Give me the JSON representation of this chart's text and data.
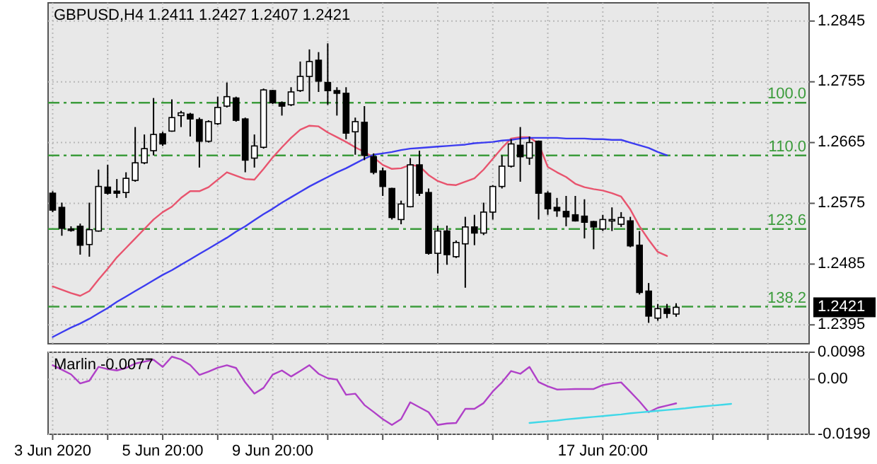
{
  "chart_data": [
    {
      "type": "candlestick",
      "title": "GBPUSD,H4 1.2411 1.2427 1.2407 1.2421",
      "categories": [
        null,
        null,
        null,
        null,
        null,
        null,
        null,
        null,
        null,
        null,
        null,
        null,
        null,
        null,
        null,
        null,
        null,
        null,
        null,
        null,
        null,
        null,
        null,
        null,
        null,
        null,
        null,
        null,
        null,
        null,
        null,
        null,
        null,
        null,
        null,
        null,
        null,
        null,
        null,
        null,
        null,
        null,
        null,
        null,
        null,
        null,
        null,
        null,
        null,
        null,
        null,
        null,
        null,
        null,
        null,
        null,
        null,
        null,
        null,
        null,
        null,
        null,
        null,
        null,
        null,
        null,
        null,
        null,
        null,
        null,
        null,
        null,
        null,
        null,
        null,
        null,
        null,
        null,
        null,
        null,
        null,
        null,
        null
      ],
      "ohlc": [
        [
          1.259,
          1.2593,
          1.2562,
          1.2565
        ],
        [
          1.2569,
          1.2576,
          1.2527,
          1.2538
        ],
        [
          1.2537,
          1.2541,
          1.2533,
          1.2535
        ],
        [
          1.2541,
          1.2545,
          1.2499,
          1.2513
        ],
        [
          1.2514,
          1.2576,
          1.2496,
          1.2536
        ],
        [
          1.2534,
          1.2625,
          1.2533,
          1.26
        ],
        [
          1.2599,
          1.2632,
          1.2588,
          1.259
        ],
        [
          1.2593,
          1.2611,
          1.2583,
          1.259
        ],
        [
          1.2591,
          1.2621,
          1.2583,
          1.2612
        ],
        [
          1.2609,
          1.2688,
          1.2607,
          1.2635
        ],
        [
          1.2635,
          1.2677,
          1.2633,
          1.2656
        ],
        [
          1.2653,
          1.2731,
          1.2646,
          1.2677
        ],
        [
          1.2678,
          1.2681,
          1.266,
          1.2663
        ],
        [
          1.2682,
          1.2729,
          1.2681,
          1.2702
        ],
        [
          1.2705,
          1.2712,
          1.2688,
          1.2709
        ],
        [
          1.2707,
          1.2709,
          1.2674,
          1.27
        ],
        [
          1.2699,
          1.2702,
          1.2628,
          1.2667
        ],
        [
          1.2667,
          1.2698,
          1.2665,
          1.2696
        ],
        [
          1.2693,
          1.2733,
          1.2691,
          1.2717
        ],
        [
          1.2719,
          1.2754,
          1.2717,
          1.2733
        ],
        [
          1.2731,
          1.2733,
          1.2696,
          1.2698
        ],
        [
          1.27,
          1.2702,
          1.2621,
          1.2639
        ],
        [
          1.2642,
          1.2677,
          1.2628,
          1.266
        ],
        [
          1.2658,
          1.2745,
          1.2656,
          1.2743
        ],
        [
          1.2742,
          1.2743,
          1.2722,
          1.2724
        ],
        [
          1.2724,
          1.2726,
          1.2705,
          1.2719
        ],
        [
          1.2721,
          1.2747,
          1.2719,
          1.274
        ],
        [
          1.2742,
          1.2785,
          1.274,
          1.2763
        ],
        [
          1.2763,
          1.2803,
          1.2726,
          1.2785
        ],
        [
          1.2787,
          1.2799,
          1.274,
          1.2756
        ],
        [
          1.2754,
          1.2812,
          1.2721,
          1.2742
        ],
        [
          1.2742,
          1.2747,
          1.2705,
          1.2738
        ],
        [
          1.2738,
          1.2747,
          1.267,
          1.2679
        ],
        [
          1.2681,
          1.2702,
          1.2647,
          1.2696
        ],
        [
          1.2695,
          1.2719,
          1.2639,
          1.2646
        ],
        [
          1.2644,
          1.2649,
          1.2618,
          1.2621
        ],
        [
          1.2623,
          1.2628,
          1.2586,
          1.26
        ],
        [
          1.2597,
          1.2598,
          1.2551,
          1.2554
        ],
        [
          1.2551,
          1.2579,
          1.2544,
          1.2574
        ],
        [
          1.257,
          1.2642,
          1.2569,
          1.2632
        ],
        [
          1.2632,
          1.2653,
          1.2586,
          1.259
        ],
        [
          1.2591,
          1.2597,
          1.2499,
          1.2501
        ],
        [
          1.2501,
          1.2542,
          1.2471,
          1.2534
        ],
        [
          1.2534,
          1.2542,
          1.2484,
          1.2499
        ],
        [
          1.2496,
          1.252,
          1.2494,
          1.2517
        ],
        [
          1.2515,
          1.2555,
          1.245,
          1.254
        ],
        [
          1.254,
          1.2558,
          1.2513,
          1.2531
        ],
        [
          1.2531,
          1.2576,
          1.2528,
          1.2562
        ],
        [
          1.2562,
          1.2602,
          1.2551,
          1.26
        ],
        [
          1.26,
          1.2646,
          1.2597,
          1.263
        ],
        [
          1.263,
          1.267,
          1.2628,
          1.2663
        ],
        [
          1.2661,
          1.2688,
          1.2607,
          1.2644
        ],
        [
          1.2642,
          1.2674,
          1.2632,
          1.2665
        ],
        [
          1.2667,
          1.2668,
          1.2551,
          1.259
        ],
        [
          1.259,
          1.2593,
          1.2558,
          1.2567
        ],
        [
          1.2569,
          1.2583,
          1.2555,
          1.2564
        ],
        [
          1.2563,
          1.2586,
          1.2541,
          1.2555
        ],
        [
          1.2558,
          1.2586,
          1.2548,
          1.2549
        ],
        [
          1.2556,
          1.2581,
          1.2523,
          1.2547
        ],
        [
          1.2548,
          1.2549,
          1.2507,
          1.254
        ],
        [
          1.2537,
          1.2558,
          1.2534,
          1.2551
        ],
        [
          1.255,
          1.2569,
          1.2534,
          1.2551
        ],
        [
          1.2544,
          1.2562,
          1.254,
          1.2554
        ],
        [
          1.2549,
          1.2555,
          1.251,
          1.2512
        ],
        [
          1.2513,
          1.2534,
          1.244,
          1.2443
        ],
        [
          1.2445,
          1.2457,
          1.2398,
          1.2408
        ],
        [
          1.2405,
          1.2426,
          1.2401,
          1.2419
        ],
        [
          1.2419,
          1.2426,
          1.2405,
          1.2412
        ],
        [
          1.2411,
          1.2427,
          1.2407,
          1.2421
        ],
        null,
        null,
        null,
        null,
        null,
        null,
        null,
        null,
        null,
        null,
        null,
        null,
        null,
        null
      ],
      "series": [
        {
          "type": "line",
          "color": "#e8546e",
          "values": [
            1.2452,
            1.2447,
            1.2442,
            1.2438,
            1.2445,
            1.2462,
            1.2478,
            1.2495,
            1.2509,
            1.2523,
            1.2537,
            1.2551,
            1.2562,
            1.257,
            1.2583,
            1.2593,
            1.2593,
            1.2599,
            1.261,
            1.2621,
            1.2616,
            1.2611,
            1.261,
            1.2626,
            1.2643,
            1.2658,
            1.2672,
            1.2684,
            1.269,
            1.2689,
            1.268,
            1.2673,
            1.2666,
            1.2658,
            1.2651,
            1.2643,
            1.2632,
            1.2626,
            1.2627,
            1.2632,
            1.263,
            1.2617,
            1.2608,
            1.2603,
            1.2602,
            1.2607,
            1.2612,
            1.2625,
            1.2641,
            1.2657,
            1.2671,
            1.2673,
            1.2673,
            1.2663,
            1.2629,
            1.2621,
            1.2614,
            1.2604,
            1.2599,
            1.2596,
            1.2594,
            1.259,
            1.2585,
            1.2566,
            1.2541,
            1.2521,
            1.2503,
            1.2497,
            null,
            null,
            null,
            null,
            null,
            null,
            null,
            null,
            null,
            null,
            null,
            null,
            null,
            null,
            null
          ]
        },
        {
          "type": "line",
          "color": "#3c3cf0",
          "values": [
            1.2377,
            1.2384,
            1.2391,
            1.2397,
            1.2404,
            1.2412,
            1.242,
            1.2429,
            1.2437,
            1.2445,
            1.2453,
            1.2461,
            1.2469,
            1.2476,
            1.2484,
            1.2492,
            1.25,
            1.2508,
            1.2516,
            1.2524,
            1.2533,
            1.2541,
            1.255,
            1.2559,
            1.2567,
            1.2576,
            1.2584,
            1.2592,
            1.26,
            1.2607,
            1.2614,
            1.2621,
            1.2627,
            1.2634,
            1.2641,
            1.2647,
            1.2649,
            1.2651,
            1.2654,
            1.2656,
            1.2657,
            1.2658,
            1.2659,
            1.266,
            1.2661,
            1.2662,
            1.2664,
            1.2665,
            1.2666,
            1.2668,
            1.2669,
            1.2671,
            1.2672,
            1.2672,
            1.2672,
            1.2672,
            1.2671,
            1.2671,
            1.2671,
            1.267,
            1.267,
            1.2669,
            1.2669,
            1.2665,
            1.2661,
            1.2657,
            1.2651,
            1.2646,
            null,
            null,
            null,
            null,
            null,
            null,
            null,
            null,
            null,
            null,
            null,
            null,
            null,
            null,
            null
          ]
        }
      ],
      "ref_lines": [
        {
          "axis": "y",
          "value": 1.2724,
          "color": "#3c9c3c",
          "line_style": "dashed"
        },
        {
          "axis": "y",
          "value": 1.2646,
          "color": "#3c9c3c",
          "line_style": "dashed"
        },
        {
          "axis": "y",
          "value": 1.2537,
          "color": "#3c9c3c",
          "line_style": "dashed"
        },
        {
          "axis": "y",
          "value": 1.2422,
          "color": "#3c9c3c",
          "line_style": "dashed"
        }
      ],
      "annotations": [
        {
          "text": "100.0",
          "y": 1.2724
        },
        {
          "text": "110.0",
          "y": 1.2646
        },
        {
          "text": "123.6",
          "y": 1.2537
        },
        {
          "text": "138.2",
          "y": 1.2422
        },
        "1.2421"
      ],
      "ylim": [
        1.2367,
        1.2872
      ],
      "yticks": [
        1.2395,
        1.2485,
        1.2575,
        1.2665,
        1.2755,
        1.2845
      ],
      "grid": true,
      "tick_labels": "y"
    },
    {
      "type": "line",
      "title": "Marlin -0.0077",
      "categories": [
        "3 Jun 2020",
        null,
        null,
        null,
        null,
        null,
        null,
        null,
        null,
        null,
        null,
        null,
        "5 Jun 20:00",
        null,
        null,
        null,
        null,
        null,
        null,
        null,
        null,
        null,
        null,
        null,
        "9 Jun 20:00",
        null,
        null,
        null,
        null,
        null,
        null,
        null,
        null,
        null,
        null,
        null,
        null,
        null,
        null,
        null,
        null,
        null,
        null,
        null,
        null,
        null,
        null,
        null,
        null,
        null,
        null,
        null,
        null,
        null,
        null,
        null,
        null,
        null,
        null,
        null,
        "17 Jun 20:00",
        null,
        null,
        null,
        null,
        null,
        null,
        null,
        null,
        null,
        null,
        null,
        null,
        null,
        null,
        null,
        null,
        null,
        null,
        null,
        null,
        null,
        null
      ],
      "series": [
        {
          "type": "line",
          "color": "#b040c8",
          "values": [
            0.0051,
            0.0035,
            0.0018,
            -0.0015,
            -0.0005,
            0.0045,
            0.0037,
            0.0032,
            0.0041,
            0.0057,
            0.0064,
            0.0071,
            0.0045,
            0.0082,
            0.0072,
            0.0052,
            0.0016,
            0.0028,
            0.0042,
            0.0051,
            0.0041,
            -0.0011,
            -0.0052,
            -0.0031,
            0.0017,
            0.0032,
            0.001,
            0.003,
            0.0051,
            0.002,
            0.0004,
            -0.0001,
            -0.0056,
            -0.0052,
            -0.0093,
            -0.0118,
            -0.0144,
            -0.0165,
            -0.0144,
            -0.0083,
            -0.0101,
            -0.0119,
            -0.0165,
            -0.016,
            -0.0158,
            -0.0107,
            -0.0107,
            -0.0086,
            -0.0044,
            -0.0011,
            0.003,
            0.002,
            0.0045,
            -0.001,
            -0.0025,
            -0.0037,
            -0.0036,
            -0.0035,
            -0.0035,
            -0.0035,
            -0.0021,
            -0.0015,
            -0.0011,
            -0.0045,
            -0.008,
            -0.0119,
            -0.0103,
            -0.0095,
            -0.0087,
            null,
            null,
            null,
            null,
            null,
            null,
            null,
            null,
            null,
            null,
            null,
            null,
            null,
            null
          ]
        },
        {
          "type": "line",
          "color": "#40d8e8",
          "values": [
            null,
            null,
            null,
            null,
            null,
            null,
            null,
            null,
            null,
            null,
            null,
            null,
            null,
            null,
            null,
            null,
            null,
            null,
            null,
            null,
            null,
            null,
            null,
            null,
            null,
            null,
            null,
            null,
            null,
            null,
            null,
            null,
            null,
            null,
            null,
            null,
            null,
            null,
            null,
            null,
            null,
            null,
            null,
            null,
            null,
            null,
            null,
            null,
            null,
            null,
            null,
            null,
            -0.0158,
            -0.0155,
            -0.0152,
            -0.0149,
            -0.0145,
            -0.0142,
            -0.0139,
            -0.0136,
            -0.0133,
            -0.013,
            -0.0127,
            -0.0123,
            -0.012,
            -0.0117,
            -0.0114,
            -0.0111,
            -0.0108,
            -0.0105,
            -0.0101,
            -0.0098,
            -0.0095,
            -0.0092,
            -0.0089,
            null,
            null,
            null,
            null,
            null,
            null,
            null,
            null
          ]
        }
      ],
      "ylim": [
        -0.0199,
        0.0098
      ],
      "yticks": [
        -0.0199,
        {
          "value": 0,
          "label": "0.00"
        },
        0.0098
      ],
      "grid": true
    }
  ]
}
